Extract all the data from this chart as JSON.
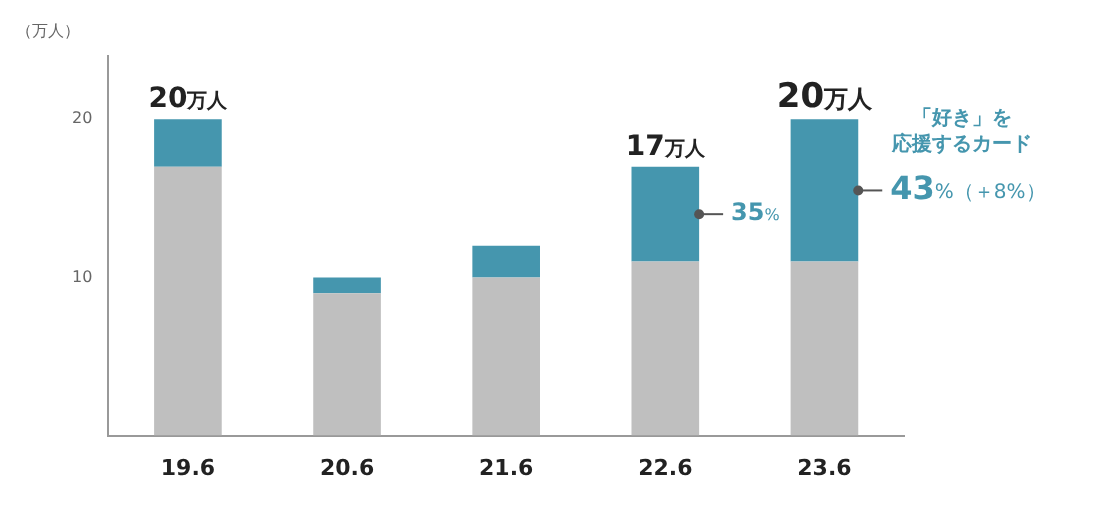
{
  "chart_data": {
    "type": "bar",
    "stacked": true,
    "ylabel": "（万人）",
    "categories": [
      "19.6",
      "20.6",
      "21.6",
      "22.6",
      "23.6"
    ],
    "series": [
      {
        "color": "#bfbfbf",
        "values": [
          17,
          9,
          10,
          11,
          11
        ]
      },
      {
        "name": "「好き」を応援するカード",
        "color": "#4596ae",
        "values": [
          3,
          1,
          2,
          6,
          9
        ]
      }
    ],
    "ylim": [
      0,
      24
    ],
    "yticks": [
      10,
      20
    ],
    "grid": false,
    "legend": false,
    "totals": [
      "20万人",
      null,
      null,
      "17万人",
      "20万人"
    ],
    "annotations": [
      "35%",
      "43%（＋8%）"
    ]
  }
}
